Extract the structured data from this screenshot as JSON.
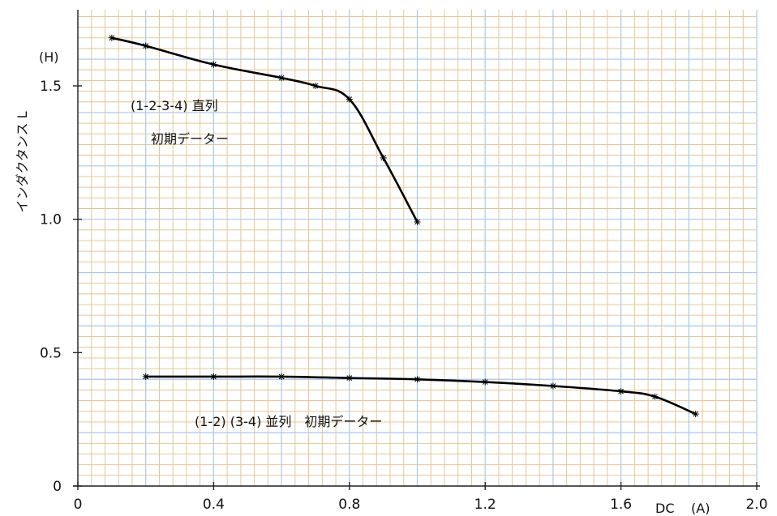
{
  "chart_data": {
    "type": "line",
    "xlabel": "DC",
    "x_unit": "(A)",
    "ylabel": "インダクタンス L",
    "y_unit": "(H)",
    "xlim": [
      0,
      2.0
    ],
    "ylim": [
      0,
      1.7
    ],
    "x_ticks": [
      "0",
      "0.4",
      "0.8",
      "1.2",
      "1.6",
      "2.0"
    ],
    "y_ticks": [
      "0",
      "0.5",
      "1.0",
      "1.5"
    ],
    "grid": true,
    "colors": {
      "major_grid": "#a8c8e8",
      "minor_grid": "#e0c090",
      "series": "#000000"
    },
    "series": [
      {
        "annotation": [
          "(1-2-3-4) 直列",
          "初期データー"
        ],
        "x": [
          0.1,
          0.2,
          0.4,
          0.6,
          0.7,
          0.8,
          0.9,
          1.0
        ],
        "y": [
          1.68,
          1.65,
          1.58,
          1.53,
          1.5,
          1.45,
          1.23,
          0.99
        ]
      },
      {
        "annotation": [
          "(1-2) (3-4) 並列　初期データー"
        ],
        "x": [
          0.2,
          0.4,
          0.6,
          0.8,
          1.0,
          1.2,
          1.4,
          1.6,
          1.7,
          1.82
        ],
        "y": [
          0.41,
          0.41,
          0.41,
          0.405,
          0.4,
          0.39,
          0.375,
          0.355,
          0.335,
          0.27
        ]
      }
    ]
  }
}
